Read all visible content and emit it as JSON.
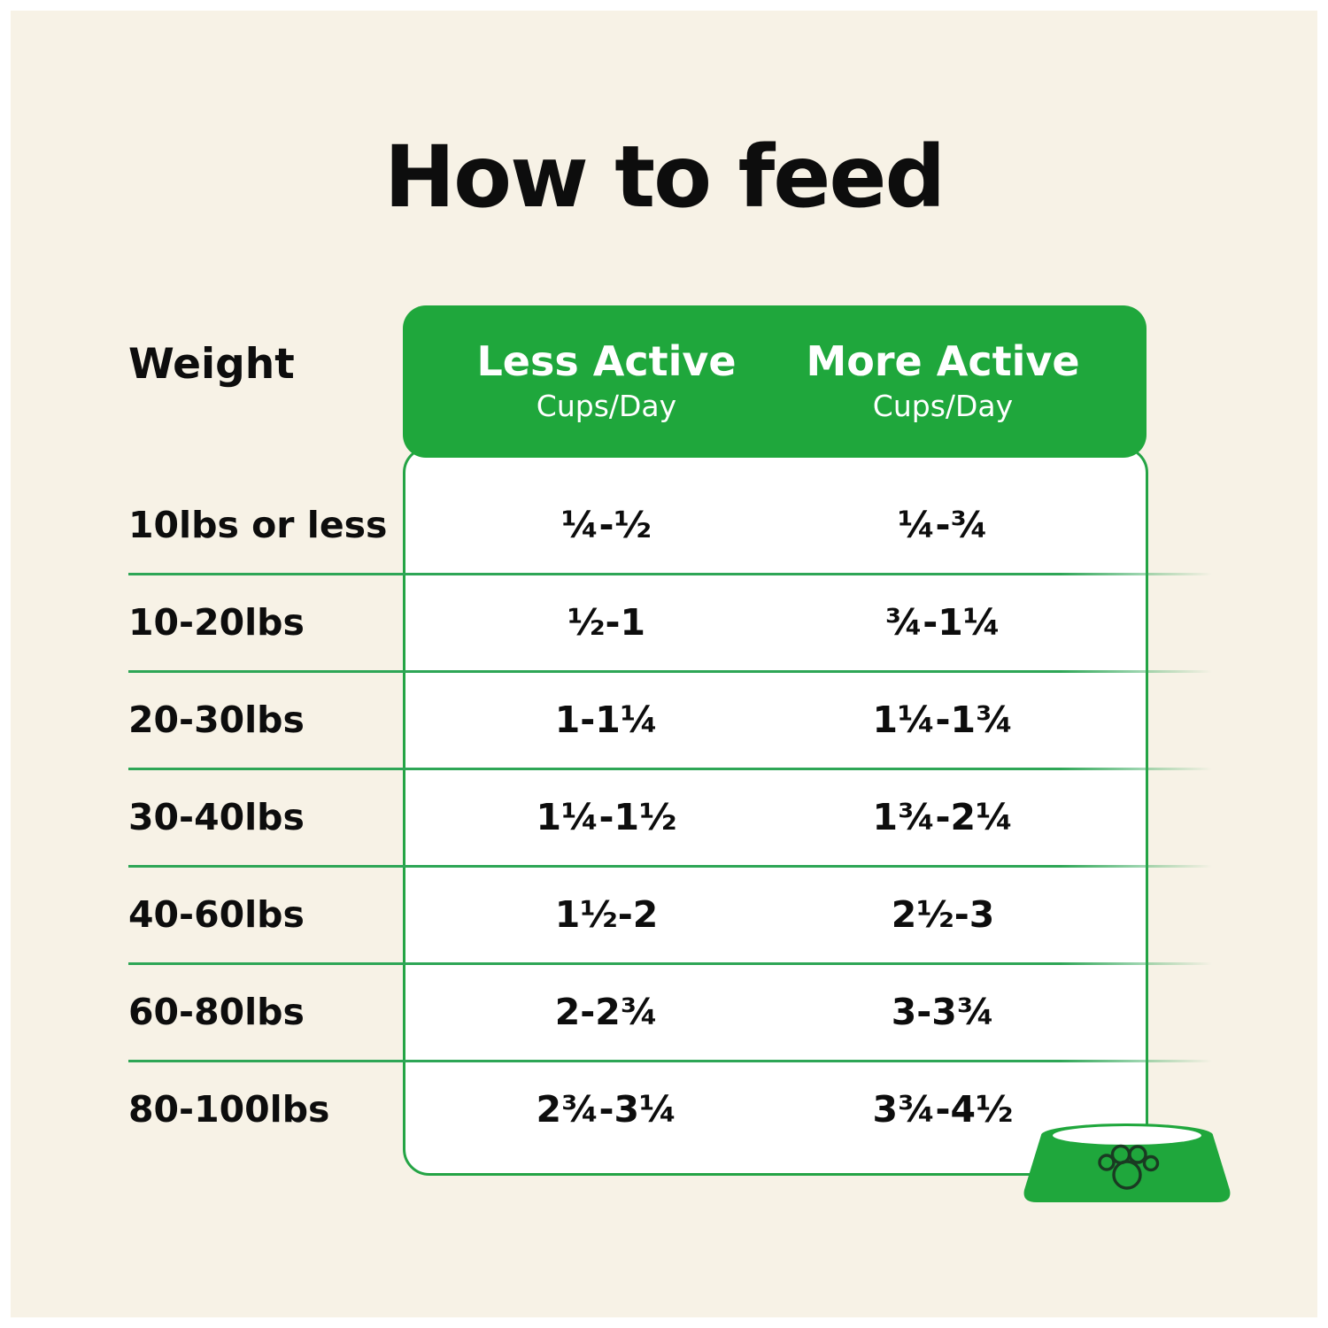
{
  "page": {
    "title": "How to feed",
    "background_color": "#F7F2E6",
    "accent_green": "#1FA73C",
    "divider_green": "#2EA656",
    "text_color": "#0d0d0d"
  },
  "table": {
    "weight_header": "Weight",
    "columns": [
      {
        "label": "Less Active",
        "sublabel": "Cups/Day"
      },
      {
        "label": "More Active",
        "sublabel": "Cups/Day"
      }
    ],
    "rows": [
      {
        "weight": "10lbs or less",
        "less_active": "¼-½",
        "more_active": "¼-¾"
      },
      {
        "weight": "10-20lbs",
        "less_active": "½-1",
        "more_active": "¾-1¼"
      },
      {
        "weight": "20-30lbs",
        "less_active": "1-1¼",
        "more_active": "1¼-1¾"
      },
      {
        "weight": "30-40lbs",
        "less_active": "1¼-1½",
        "more_active": "1¾-2¼"
      },
      {
        "weight": "40-60lbs",
        "less_active": "1½-2",
        "more_active": "2½-3"
      },
      {
        "weight": "60-80lbs",
        "less_active": "2-2¾",
        "more_active": "3-3¾"
      },
      {
        "weight": "80-100lbs",
        "less_active": "2¾-3¼",
        "more_active": "3¾-4½"
      }
    ]
  },
  "icons": {
    "bowl": "dog-bowl-with-paw-print"
  }
}
